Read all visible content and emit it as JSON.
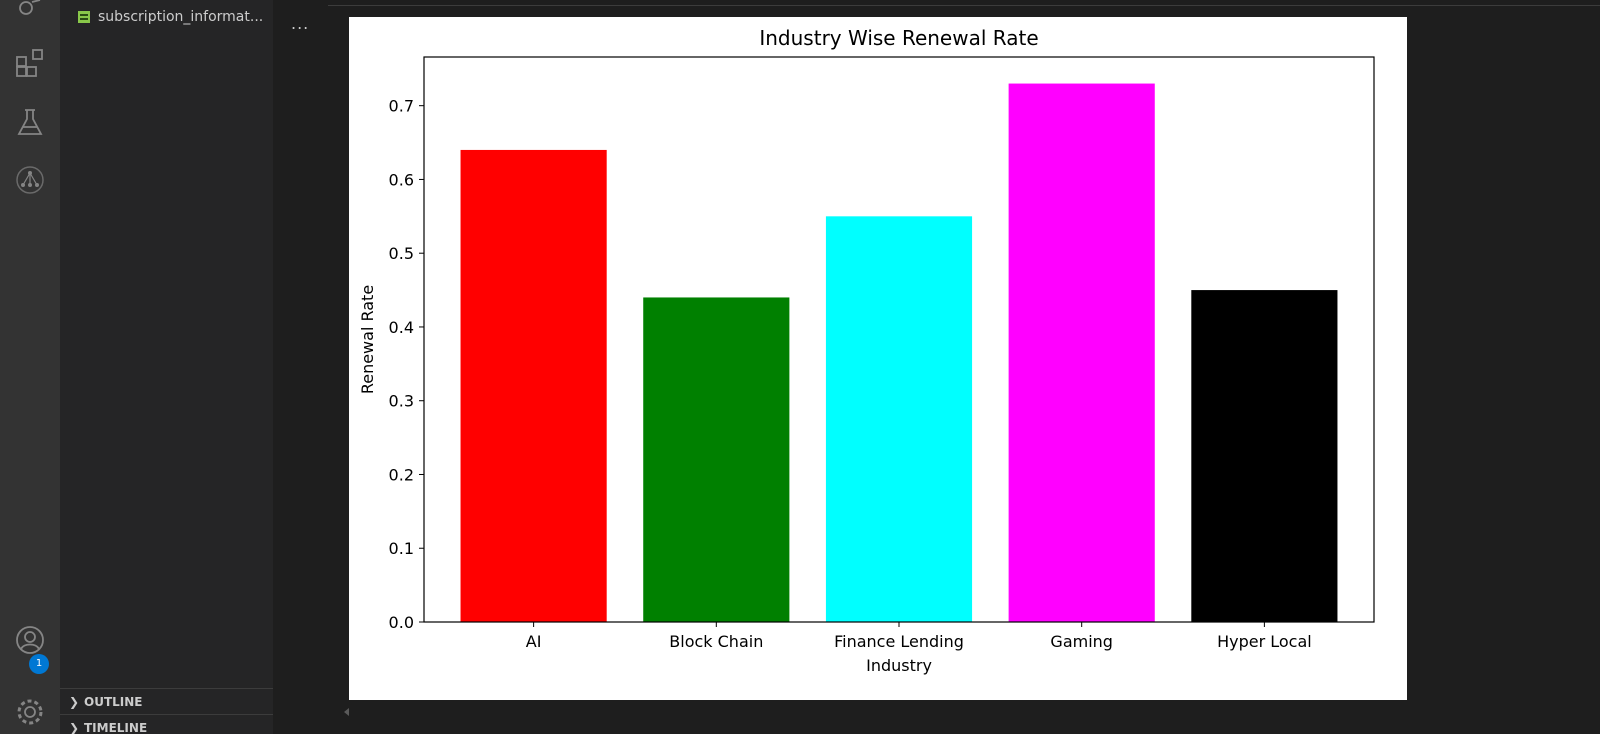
{
  "explorer": {
    "file_name": "subscription_informat...",
    "outline_label": "OUTLINE",
    "timeline_label": "TIMELINE"
  },
  "activity_bar": {
    "icons": [
      "run-debug-icon",
      "extensions-icon",
      "testing-icon",
      "source-control-graph-icon",
      "account-icon",
      "settings-icon"
    ],
    "account_badge": "1"
  },
  "editor": {
    "more_actions": "..."
  },
  "chart_data": {
    "type": "bar",
    "title": "Industry Wise Renewal Rate",
    "xlabel": "Industry",
    "ylabel": "Renewal Rate",
    "categories": [
      "AI",
      "Block Chain",
      "Finance Lending",
      "Gaming",
      "Hyper Local"
    ],
    "values": [
      0.64,
      0.44,
      0.55,
      0.73,
      0.45
    ],
    "colors": [
      "#ff0000",
      "#008000",
      "#00ffff",
      "#ff00ff",
      "#000000"
    ],
    "ylim": [
      0,
      0.766
    ],
    "yticks": [
      "0.0",
      "0.1",
      "0.2",
      "0.3",
      "0.4",
      "0.5",
      "0.6",
      "0.7"
    ],
    "grid": false,
    "legend": "none"
  }
}
